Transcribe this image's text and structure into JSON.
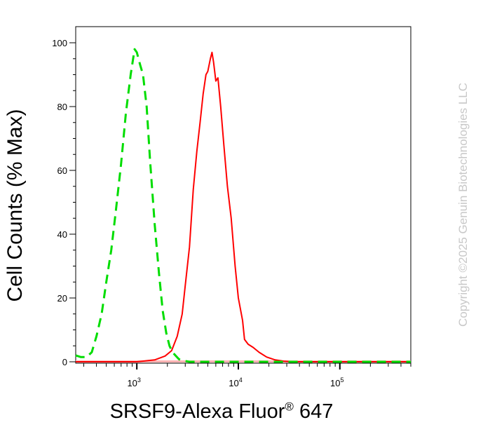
{
  "chart_data": {
    "type": "line",
    "title": "",
    "xlabel_main": "SRSF9-Alexa Fluor",
    "xlabel_reg": "®",
    "xlabel_tail": " 647",
    "ylabel": "Cell Counts (% Max)",
    "xscale": "log",
    "xlim": [
      250,
      500000
    ],
    "ylim": [
      0,
      100
    ],
    "y_ticks": [
      0,
      20,
      40,
      60,
      80,
      100
    ],
    "x_ticks": [
      {
        "value": 1000,
        "base": "10",
        "exp": "3"
      },
      {
        "value": 10000,
        "base": "10",
        "exp": "4"
      },
      {
        "value": 100000,
        "base": "10",
        "exp": "5"
      }
    ],
    "grid": false,
    "legend": "none",
    "series": [
      {
        "color": "#ff0000",
        "style": "solid",
        "x": [
          250,
          1000,
          1500,
          1900,
          2200,
          2500,
          2800,
          3000,
          3300,
          3600,
          3900,
          4200,
          4500,
          4800,
          5000,
          5300,
          5500,
          5700,
          6000,
          6300,
          6700,
          7200,
          7800,
          8500,
          9300,
          10000,
          11000,
          11500,
          12500,
          14000,
          16000,
          19000,
          23000,
          28000,
          35000,
          45000,
          100000,
          500000
        ],
        "y": [
          0,
          0,
          0.6,
          1.8,
          3.5,
          8,
          15,
          24,
          36,
          54,
          66,
          75,
          84,
          90,
          91,
          95,
          97,
          94,
          88,
          89,
          80,
          68,
          55,
          45,
          30,
          20,
          13,
          7,
          5.5,
          4.5,
          3,
          1.5,
          0.6,
          0.2,
          0,
          0,
          0,
          0
        ]
      },
      {
        "color": "#00dd00",
        "style": "dashed",
        "x": [
          250,
          280,
          320,
          360,
          400,
          450,
          500,
          560,
          620,
          700,
          780,
          870,
          950,
          1000,
          1080,
          1150,
          1250,
          1350,
          1500,
          1650,
          1800,
          1950,
          2100,
          2250,
          2400,
          2600,
          2900,
          3300,
          4000,
          6000,
          10000,
          50000,
          500000
        ],
        "y": [
          2,
          1.5,
          1.5,
          3,
          8,
          15,
          25,
          35,
          47,
          62,
          78,
          90,
          98,
          97,
          93,
          90,
          80,
          63,
          43,
          28,
          16,
          9,
          5,
          3,
          2,
          0.8,
          0.3,
          0,
          0,
          0,
          0,
          0,
          0
        ]
      }
    ]
  },
  "watermark": "Copyright ©2025 Genuin Biotechnologies LLC"
}
